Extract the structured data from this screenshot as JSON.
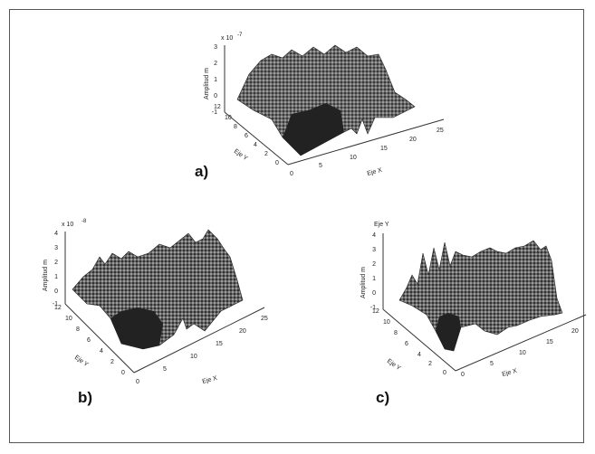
{
  "panels": [
    {
      "id": "a",
      "label": "a)",
      "zlabel": "Amplitud m",
      "scale": "x 10",
      "exponent": "-7",
      "ylabel": "Eje Y",
      "xlabel": "Eje X",
      "zticks": [
        "3",
        "2",
        "1",
        "0",
        "-1"
      ],
      "yticks": [
        "12",
        "10",
        "8",
        "6",
        "4",
        "2",
        "0"
      ],
      "xticks": [
        "0",
        "5",
        "10",
        "15",
        "20",
        "25"
      ]
    },
    {
      "id": "b",
      "label": "b)",
      "zlabel": "Amplitud m",
      "scale": "x 10",
      "exponent": "-8",
      "ylabel": "Eje Y",
      "xlabel": "Eje X",
      "zticks": [
        "4",
        "3",
        "2",
        "1",
        "0",
        "-1"
      ],
      "yticks": [
        "12",
        "10",
        "8",
        "6",
        "4",
        "2",
        "0"
      ],
      "xticks": [
        "0",
        "5",
        "10",
        "15",
        "20",
        "25"
      ]
    },
    {
      "id": "c",
      "label": "c)",
      "zlabel": "Amplitud m",
      "scale": "Eje Y",
      "exponent": "",
      "ylabel": "Eje Y",
      "xlabel": "Eje X",
      "zticks": [
        "4",
        "3",
        "2",
        "1",
        "0",
        "-1"
      ],
      "yticks": [
        "12",
        "10",
        "8",
        "6",
        "4",
        "2",
        "0"
      ],
      "xticks": [
        "0",
        "5",
        "10",
        "15",
        "20"
      ]
    }
  ],
  "chart_data": [
    {
      "type": "surface",
      "zlabel": "Amplitud m",
      "ylabel": "Eje Y",
      "xlabel": "Eje X",
      "xlim": [
        0,
        25
      ],
      "ylim": [
        0,
        12
      ],
      "zlim": [
        -1,
        3
      ],
      "zscale": "x 10^-7"
    },
    {
      "type": "surface",
      "zlabel": "Amplitud m",
      "ylabel": "Eje Y",
      "xlabel": "Eje X",
      "xlim": [
        0,
        25
      ],
      "ylim": [
        0,
        12
      ],
      "zlim": [
        -1,
        4
      ],
      "zscale": "x 10^-8"
    },
    {
      "type": "surface",
      "zlabel": "Amplitud m",
      "ylabel": "Eje Y",
      "xlabel": "Eje X",
      "xlim": [
        0,
        20
      ],
      "ylim": [
        0,
        12
      ],
      "zlim": [
        -1,
        4
      ]
    }
  ]
}
